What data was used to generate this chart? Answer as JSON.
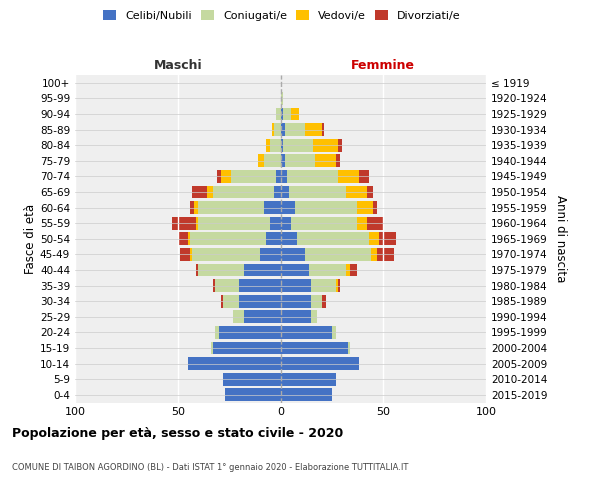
{
  "age_groups": [
    "0-4",
    "5-9",
    "10-14",
    "15-19",
    "20-24",
    "25-29",
    "30-34",
    "35-39",
    "40-44",
    "45-49",
    "50-54",
    "55-59",
    "60-64",
    "65-69",
    "70-74",
    "75-79",
    "80-84",
    "85-89",
    "90-94",
    "95-99",
    "100+"
  ],
  "birth_years": [
    "2015-2019",
    "2010-2014",
    "2005-2009",
    "2000-2004",
    "1995-1999",
    "1990-1994",
    "1985-1989",
    "1980-1984",
    "1975-1979",
    "1970-1974",
    "1965-1969",
    "1960-1964",
    "1955-1959",
    "1950-1954",
    "1945-1949",
    "1940-1944",
    "1935-1939",
    "1930-1934",
    "1925-1929",
    "1920-1924",
    "≤ 1919"
  ],
  "male": {
    "celibe": [
      27,
      28,
      45,
      33,
      30,
      18,
      20,
      20,
      18,
      10,
      7,
      5,
      8,
      3,
      2,
      0,
      0,
      0,
      0,
      0,
      0
    ],
    "coniugato": [
      0,
      0,
      0,
      1,
      2,
      5,
      8,
      12,
      22,
      33,
      37,
      35,
      32,
      30,
      22,
      8,
      5,
      3,
      2,
      0,
      0
    ],
    "vedovo": [
      0,
      0,
      0,
      0,
      0,
      0,
      0,
      0,
      0,
      1,
      1,
      1,
      2,
      3,
      5,
      3,
      2,
      1,
      0,
      0,
      0
    ],
    "divorziato": [
      0,
      0,
      0,
      0,
      0,
      0,
      1,
      1,
      1,
      5,
      5,
      12,
      2,
      7,
      2,
      0,
      0,
      0,
      0,
      0,
      0
    ]
  },
  "female": {
    "nubile": [
      25,
      27,
      38,
      33,
      25,
      15,
      15,
      15,
      14,
      12,
      8,
      5,
      7,
      4,
      3,
      2,
      1,
      2,
      1,
      0,
      0
    ],
    "coniugata": [
      0,
      0,
      0,
      1,
      2,
      3,
      5,
      12,
      18,
      32,
      35,
      32,
      30,
      28,
      25,
      15,
      15,
      10,
      4,
      1,
      0
    ],
    "vedova": [
      0,
      0,
      0,
      0,
      0,
      0,
      0,
      1,
      2,
      3,
      5,
      5,
      8,
      10,
      10,
      10,
      12,
      8,
      4,
      0,
      0
    ],
    "divorziata": [
      0,
      0,
      0,
      0,
      0,
      0,
      2,
      1,
      3,
      8,
      8,
      8,
      2,
      3,
      5,
      2,
      2,
      1,
      0,
      0,
      0
    ]
  },
  "colors": {
    "celibe": "#4472c4",
    "coniugato": "#c5d9a0",
    "vedovo": "#ffc000",
    "divorziato": "#c0392b"
  },
  "xlim": [
    -100,
    100
  ],
  "xticks": [
    -100,
    -50,
    0,
    50,
    100
  ],
  "xticklabels": [
    "100",
    "50",
    "0",
    "50",
    "100"
  ],
  "title": "Popolazione per età, sesso e stato civile - 2020",
  "subtitle": "COMUNE DI TAIBON AGORDINO (BL) - Dati ISTAT 1° gennaio 2020 - Elaborazione TUTTITALIA.IT",
  "ylabel_left": "Fasce di età",
  "ylabel_right": "Anni di nascita",
  "header_left": "Maschi",
  "header_right": "Femmine",
  "legend_labels": [
    "Celibi/Nubili",
    "Coniugati/e",
    "Vedovi/e",
    "Divorziati/e"
  ],
  "bg_color": "#efefef"
}
